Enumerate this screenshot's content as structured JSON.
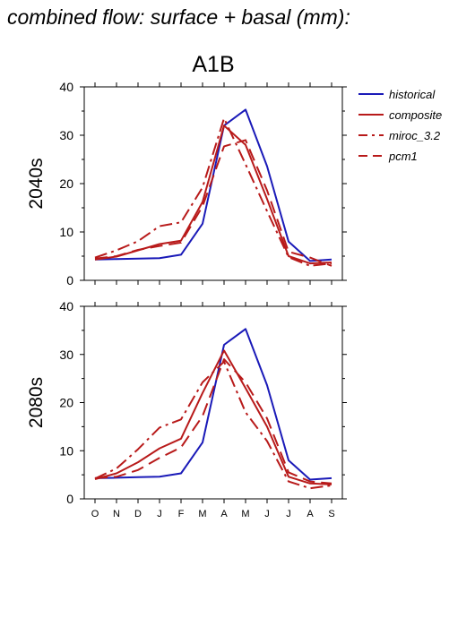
{
  "page": {
    "title": "combined flow: surface + basal (mm):"
  },
  "colors": {
    "historical": "#1a1ab8",
    "scenario": "#b81a1a",
    "axis": "#000000"
  },
  "chart_data": {
    "type": "line",
    "title": "A1B",
    "categories": [
      "O",
      "N",
      "D",
      "J",
      "F",
      "M",
      "A",
      "M",
      "J",
      "J",
      "A",
      "S"
    ],
    "ylim": [
      0,
      40
    ],
    "yticks": [
      0,
      10,
      20,
      30,
      40
    ],
    "legend": {
      "placement": "top-right",
      "entries": [
        {
          "label": "historical",
          "style": "solid",
          "color": "#1a1ab8"
        },
        {
          "label": "composite",
          "style": "solid",
          "color": "#b81a1a"
        },
        {
          "label": "miroc_3.2",
          "style": "dashdot",
          "color": "#b81a1a"
        },
        {
          "label": "pcm1",
          "style": "dash",
          "color": "#b81a1a"
        }
      ]
    },
    "panels": [
      {
        "ylabel": "2040s",
        "series": [
          {
            "name": "historical",
            "values": [
              4.3,
              4.4,
              4.5,
              4.6,
              5.3,
              11.7,
              32.0,
              35.3,
              23.6,
              8.0,
              4.0,
              4.3
            ]
          },
          {
            "name": "composite",
            "values": [
              4.3,
              4.9,
              6.2,
              7.5,
              8.2,
              16.2,
              32.0,
              28.0,
              16.8,
              5.0,
              3.5,
              3.7
            ]
          },
          {
            "name": "miroc_3.2",
            "values": [
              4.7,
              6.2,
              8.1,
              11.2,
              12.0,
              19.2,
              33.5,
              24.0,
              14.3,
              4.8,
              3.0,
              3.5
            ]
          },
          {
            "name": "pcm1",
            "values": [
              4.5,
              5.0,
              6.3,
              7.1,
              7.8,
              15.3,
              27.7,
              29.0,
              18.6,
              5.9,
              4.7,
              3.0
            ]
          }
        ]
      },
      {
        "ylabel": "2080s",
        "series": [
          {
            "name": "historical",
            "values": [
              4.3,
              4.4,
              4.5,
              4.6,
              5.3,
              11.7,
              32.0,
              35.3,
              23.6,
              8.0,
              4.0,
              4.3
            ]
          },
          {
            "name": "composite",
            "values": [
              4.1,
              5.3,
              7.6,
              10.5,
              12.5,
              22.0,
              30.8,
              23.0,
              15.0,
              4.6,
              3.2,
              3.0
            ]
          },
          {
            "name": "miroc_3.2",
            "values": [
              4.2,
              6.3,
              10.3,
              14.8,
              16.5,
              24.2,
              28.5,
              18.0,
              12.0,
              3.6,
              2.2,
              2.8
            ]
          },
          {
            "name": "pcm1",
            "values": [
              4.3,
              4.6,
              6.0,
              8.5,
              10.7,
              17.2,
              29.0,
              24.2,
              16.7,
              5.5,
              3.6,
              3.2
            ]
          }
        ]
      }
    ]
  }
}
